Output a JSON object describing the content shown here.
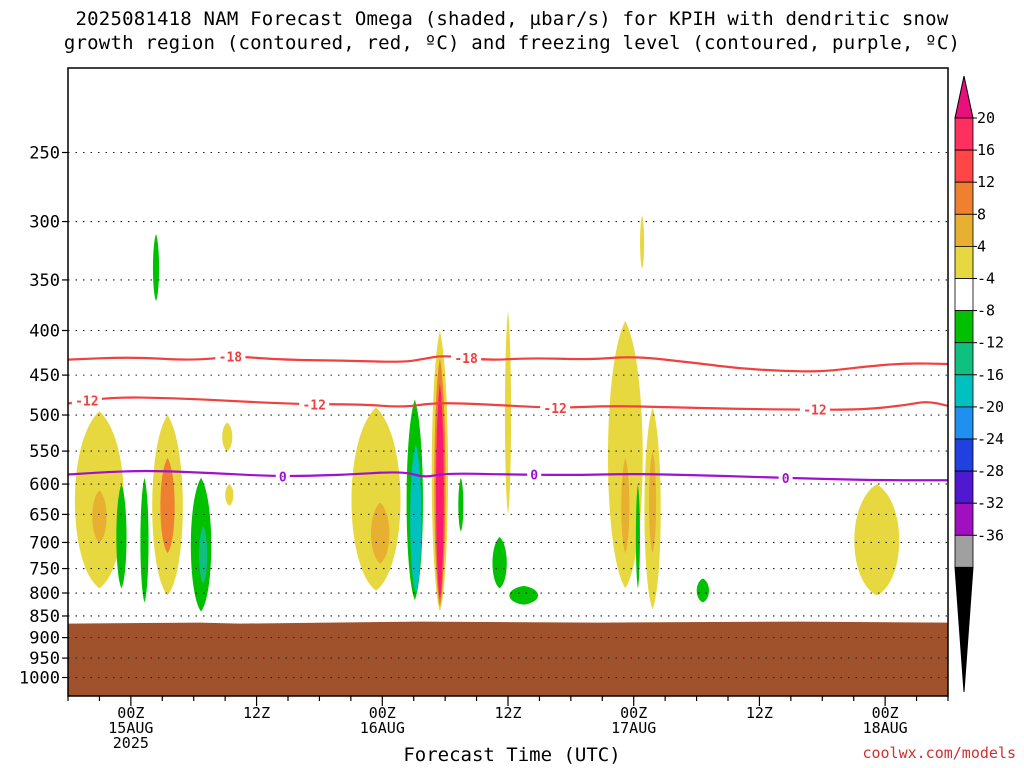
{
  "title_line1": "2025081418 NAM Forecast Omega (shaded, µbar/s) for KPIH with dendritic snow",
  "title_line2": "growth region (contoured, red, ºC) and freezing level (contoured, purple, ºC)",
  "credit": "coolwx.com/models",
  "chart_data": {
    "type": "heatmap",
    "title": "2025081418 NAM Forecast Omega (shaded, µbar/s) for KPIH with dendritic snow growth region (contoured, red, ºC) and freezing level (contoured, purple, ºC)",
    "xlabel": "Forecast Time (UTC)",
    "ylabel": "",
    "x_range_hours": [
      -6,
      78
    ],
    "y_scale": "log-pressure",
    "y_range_hPa": [
      200,
      1050
    ],
    "grid": true,
    "y_ticks": [
      250,
      300,
      350,
      400,
      450,
      500,
      550,
      600,
      650,
      700,
      750,
      800,
      850,
      900,
      950,
      1000
    ],
    "y_tick_labels": [
      "250",
      "300",
      "350",
      "400",
      "450",
      "500",
      "550",
      "600",
      "650",
      "700",
      "750",
      "800",
      "850",
      "900",
      "950",
      "1000"
    ],
    "x_ticks": [
      {
        "hour": 0,
        "line1": "00Z",
        "line2": "15AUG",
        "line3": "2025"
      },
      {
        "hour": 12,
        "line1": "12Z",
        "line2": "",
        "line3": ""
      },
      {
        "hour": 24,
        "line1": "00Z",
        "line2": "16AUG",
        "line3": ""
      },
      {
        "hour": 36,
        "line1": "12Z",
        "line2": "",
        "line3": ""
      },
      {
        "hour": 48,
        "line1": "00Z",
        "line2": "17AUG",
        "line3": ""
      },
      {
        "hour": 60,
        "line1": "12Z",
        "line2": "",
        "line3": ""
      },
      {
        "hour": 72,
        "line1": "00Z",
        "line2": "18AUG",
        "line3": ""
      }
    ],
    "colorbar": {
      "labels": [
        "20",
        "16",
        "12",
        "8",
        "4",
        "-4",
        "-8",
        "-12",
        "-16",
        "-20",
        "-24",
        "-28",
        "-32",
        "-36"
      ],
      "colors": [
        "#ff3060",
        "#ff4545",
        "#ee8030",
        "#e8b030",
        "#e8d840",
        "#ffffff",
        "#00c000",
        "#10c080",
        "#00c0c0",
        "#2090f0",
        "#2040e0",
        "#5018d0",
        "#a010c0",
        "#a0a0a0"
      ],
      "top_arrow_color": "#e8107a",
      "bottom_arrow_color": "#000000"
    },
    "terrain": {
      "pressure_hPa": 865,
      "color": "#a0522d"
    },
    "contours": [
      {
        "label": "-18",
        "color": "#f04040",
        "points": [
          [
            -6,
            432
          ],
          [
            0,
            429
          ],
          [
            6,
            433
          ],
          [
            10,
            428
          ],
          [
            14,
            432
          ],
          [
            20,
            433
          ],
          [
            26,
            435
          ],
          [
            28,
            431
          ],
          [
            30,
            427
          ],
          [
            34,
            433
          ],
          [
            38,
            430
          ],
          [
            44,
            432
          ],
          [
            48,
            428
          ],
          [
            54,
            436
          ],
          [
            58,
            442
          ],
          [
            62,
            445
          ],
          [
            66,
            446
          ],
          [
            70,
            440
          ],
          [
            74,
            436
          ],
          [
            78,
            437
          ]
        ],
        "label_hours": [
          9.5,
          32
        ]
      },
      {
        "label": "-12",
        "color": "#f04040",
        "points": [
          [
            -6,
            485
          ],
          [
            -2,
            477
          ],
          [
            4,
            478
          ],
          [
            10,
            482
          ],
          [
            16,
            486
          ],
          [
            22,
            486
          ],
          [
            26,
            490
          ],
          [
            29,
            484
          ],
          [
            34,
            486
          ],
          [
            40,
            491
          ],
          [
            46,
            488
          ],
          [
            52,
            490
          ],
          [
            58,
            492
          ],
          [
            64,
            493
          ],
          [
            70,
            493
          ],
          [
            74,
            487
          ],
          [
            76,
            482
          ],
          [
            78,
            488
          ]
        ],
        "label_hours": [
          -4.2,
          17.5,
          40.5,
          65.3
        ]
      },
      {
        "label": "0",
        "color": "#a010d0",
        "points": [
          [
            -6,
            585
          ],
          [
            -2,
            581
          ],
          [
            2,
            579
          ],
          [
            8,
            583
          ],
          [
            14,
            588
          ],
          [
            20,
            586
          ],
          [
            26,
            580
          ],
          [
            28,
            590
          ],
          [
            30,
            583
          ],
          [
            36,
            585
          ],
          [
            42,
            586
          ],
          [
            48,
            584
          ],
          [
            54,
            586
          ],
          [
            60,
            589
          ],
          [
            66,
            592
          ],
          [
            72,
            594
          ],
          [
            78,
            594
          ]
        ],
        "label_hours": [
          14.5,
          38.5,
          62.5
        ]
      }
    ],
    "omega_cells": [
      {
        "hour": -3,
        "p_top": 495,
        "p_bot": 790,
        "halfwidth": 2.4,
        "value": 6
      },
      {
        "hour": -3,
        "p_top": 610,
        "p_bot": 700,
        "halfwidth": 0.7,
        "value": 10
      },
      {
        "hour": 3.5,
        "p_top": 500,
        "p_bot": 805,
        "halfwidth": 1.5,
        "value": 6
      },
      {
        "hour": 3.5,
        "p_top": 560,
        "p_bot": 720,
        "halfwidth": 0.7,
        "value": 12
      },
      {
        "hour": 1.3,
        "p_top": 590,
        "p_bot": 820,
        "halfwidth": 0.4,
        "value": -6
      },
      {
        "hour": 2.4,
        "p_top": 310,
        "p_bot": 370,
        "halfwidth": 0.3,
        "value": -6
      },
      {
        "hour": 6.7,
        "p_top": 590,
        "p_bot": 840,
        "halfwidth": 1.0,
        "value": -6
      },
      {
        "hour": 6.9,
        "p_top": 670,
        "p_bot": 780,
        "halfwidth": 0.4,
        "value": -10
      },
      {
        "hour": 9.2,
        "p_top": 510,
        "p_bot": 550,
        "halfwidth": 0.5,
        "value": 5
      },
      {
        "hour": 9.4,
        "p_top": 600,
        "p_bot": 635,
        "halfwidth": 0.4,
        "value": 5
      },
      {
        "hour": -0.9,
        "p_top": 600,
        "p_bot": 790,
        "halfwidth": 0.5,
        "value": -5
      },
      {
        "hour": 23.4,
        "p_top": 490,
        "p_bot": 795,
        "halfwidth": 2.4,
        "value": 6
      },
      {
        "hour": 23.8,
        "p_top": 630,
        "p_bot": 740,
        "halfwidth": 0.9,
        "value": 10
      },
      {
        "hour": 27.1,
        "p_top": 480,
        "p_bot": 815,
        "halfwidth": 0.8,
        "value": -6
      },
      {
        "hour": 27.2,
        "p_top": 540,
        "p_bot": 800,
        "halfwidth": 0.55,
        "value": -14
      },
      {
        "hour": 29.5,
        "p_top": 400,
        "p_bot": 840,
        "halfwidth": 0.8,
        "value": 6
      },
      {
        "hour": 29.5,
        "p_top": 430,
        "p_bot": 830,
        "halfwidth": 0.55,
        "value": 13
      },
      {
        "hour": 29.5,
        "p_top": 460,
        "p_bot": 815,
        "halfwidth": 0.38,
        "value": 22
      },
      {
        "hour": 31.5,
        "p_top": 590,
        "p_bot": 680,
        "halfwidth": 0.25,
        "value": -6
      },
      {
        "hour": 35.2,
        "p_top": 690,
        "p_bot": 790,
        "halfwidth": 0.7,
        "value": -6
      },
      {
        "hour": 36.0,
        "p_top": 380,
        "p_bot": 650,
        "halfwidth": 0.3,
        "value": 5
      },
      {
        "hour": 37.5,
        "p_top": 785,
        "p_bot": 825,
        "halfwidth": 1.4,
        "value": -6
      },
      {
        "hour": 47.2,
        "p_top": 390,
        "p_bot": 790,
        "halfwidth": 1.7,
        "value": 6
      },
      {
        "hour": 47.2,
        "p_top": 560,
        "p_bot": 720,
        "halfwidth": 0.4,
        "value": 10
      },
      {
        "hour": 48.4,
        "p_top": 600,
        "p_bot": 790,
        "halfwidth": 0.2,
        "value": -6
      },
      {
        "hour": 49.8,
        "p_top": 490,
        "p_bot": 835,
        "halfwidth": 0.8,
        "value": 6
      },
      {
        "hour": 49.8,
        "p_top": 550,
        "p_bot": 720,
        "halfwidth": 0.35,
        "value": 10
      },
      {
        "hour": 48.8,
        "p_top": 295,
        "p_bot": 340,
        "halfwidth": 0.2,
        "value": 5
      },
      {
        "hour": 54.6,
        "p_top": 770,
        "p_bot": 820,
        "halfwidth": 0.6,
        "value": -6
      },
      {
        "hour": 71.2,
        "p_top": 600,
        "p_bot": 805,
        "halfwidth": 2.2,
        "value": 6
      }
    ]
  }
}
